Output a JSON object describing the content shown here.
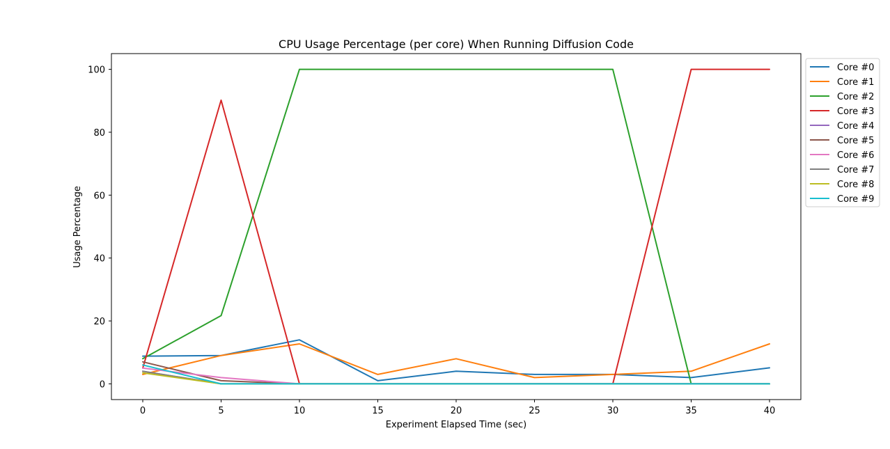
{
  "chart_data": {
    "type": "line",
    "title": "CPU Usage Percentage (per core) When Running Diffusion Code",
    "xlabel": "Experiment Elapsed Time (sec)",
    "ylabel": "Usage Percentage",
    "x": [
      0,
      5,
      10,
      15,
      20,
      25,
      30,
      35,
      40
    ],
    "xticks": [
      0,
      5,
      10,
      15,
      20,
      25,
      30,
      35,
      40
    ],
    "yticks": [
      0,
      20,
      40,
      60,
      80,
      100
    ],
    "xlim": [
      -2,
      42
    ],
    "ylim": [
      -5,
      105
    ],
    "grid": false,
    "legend_position": "outside-right-top",
    "series": [
      {
        "name": "Core #0",
        "color": "#1f77b4",
        "values": [
          8.8,
          9.0,
          14.0,
          1.0,
          4.0,
          3.0,
          3.0,
          2.0,
          5.1
        ]
      },
      {
        "name": "Core #1",
        "color": "#ff7f0e",
        "values": [
          3.0,
          9.0,
          12.7,
          3.0,
          8.0,
          2.0,
          3.0,
          4.0,
          12.7
        ]
      },
      {
        "name": "Core #2",
        "color": "#2ca02c",
        "values": [
          8.0,
          21.7,
          100.0,
          100.0,
          100.0,
          100.0,
          100.0,
          0.0,
          0.0
        ]
      },
      {
        "name": "Core #3",
        "color": "#d62728",
        "values": [
          5.0,
          90.2,
          0.0,
          0.0,
          0.0,
          0.0,
          0.0,
          100.0,
          100.0
        ]
      },
      {
        "name": "Core #4",
        "color": "#9467bd",
        "values": [
          4.0,
          0.0,
          0.0,
          0.0,
          0.0,
          0.0,
          0.0,
          0.0,
          0.0
        ]
      },
      {
        "name": "Core #5",
        "color": "#8c564b",
        "values": [
          7.0,
          1.0,
          0.0,
          0.0,
          0.0,
          0.0,
          0.0,
          0.0,
          0.0
        ]
      },
      {
        "name": "Core #6",
        "color": "#e377c2",
        "values": [
          5.0,
          2.0,
          0.0,
          0.0,
          0.0,
          0.0,
          0.0,
          0.0,
          0.0
        ]
      },
      {
        "name": "Core #7",
        "color": "#7f7f7f",
        "values": [
          4.0,
          0.0,
          0.0,
          0.0,
          0.0,
          0.0,
          0.0,
          0.0,
          0.0
        ]
      },
      {
        "name": "Core #8",
        "color": "#bcbd22",
        "values": [
          3.5,
          0.0,
          0.0,
          0.0,
          0.0,
          0.0,
          0.0,
          0.0,
          0.0
        ]
      },
      {
        "name": "Core #9",
        "color": "#17becf",
        "values": [
          6.0,
          0.0,
          0.0,
          0.0,
          0.0,
          0.0,
          0.0,
          0.0,
          0.0
        ]
      }
    ]
  }
}
